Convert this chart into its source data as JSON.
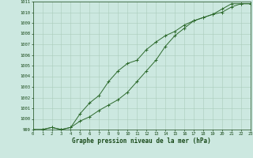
{
  "title": "Graphe pression niveau de la mer (hPa)",
  "line1_x": [
    0,
    1,
    2,
    3,
    4,
    5,
    6,
    7,
    8,
    9,
    10,
    11,
    12,
    13,
    14,
    15,
    16,
    17,
    18,
    19,
    20,
    21,
    22,
    23
  ],
  "line1_y": [
    999.0,
    999.0,
    999.2,
    999.0,
    999.2,
    1000.5,
    1001.5,
    1002.2,
    1003.5,
    1004.5,
    1005.2,
    1005.5,
    1006.5,
    1007.2,
    1007.8,
    1008.2,
    1008.8,
    1009.2,
    1009.5,
    1009.8,
    1010.3,
    1010.8,
    1010.8,
    1010.8
  ],
  "line2_x": [
    0,
    1,
    2,
    3,
    4,
    5,
    6,
    7,
    8,
    9,
    10,
    11,
    12,
    13,
    14,
    15,
    16,
    17,
    18,
    19,
    20,
    21,
    22,
    23
  ],
  "line2_y": [
    999.0,
    999.0,
    999.2,
    999.0,
    999.2,
    999.8,
    1000.2,
    1000.8,
    1001.3,
    1001.8,
    1002.5,
    1003.5,
    1004.5,
    1005.5,
    1006.8,
    1007.8,
    1008.5,
    1009.2,
    1009.5,
    1009.8,
    1010.0,
    1010.5,
    1010.8,
    1010.8
  ],
  "line_color": "#2d6a2d",
  "bg_color": "#cce8e0",
  "grid_color": "#aaccbb",
  "text_color": "#1a4a1a",
  "ylim": [
    999,
    1011
  ],
  "xlim": [
    0,
    23
  ],
  "yticks": [
    999,
    1000,
    1001,
    1002,
    1003,
    1004,
    1005,
    1006,
    1007,
    1008,
    1009,
    1010,
    1011
  ],
  "xticks": [
    0,
    1,
    2,
    3,
    4,
    5,
    6,
    7,
    8,
    9,
    10,
    11,
    12,
    13,
    14,
    15,
    16,
    17,
    18,
    19,
    20,
    21,
    22,
    23
  ]
}
